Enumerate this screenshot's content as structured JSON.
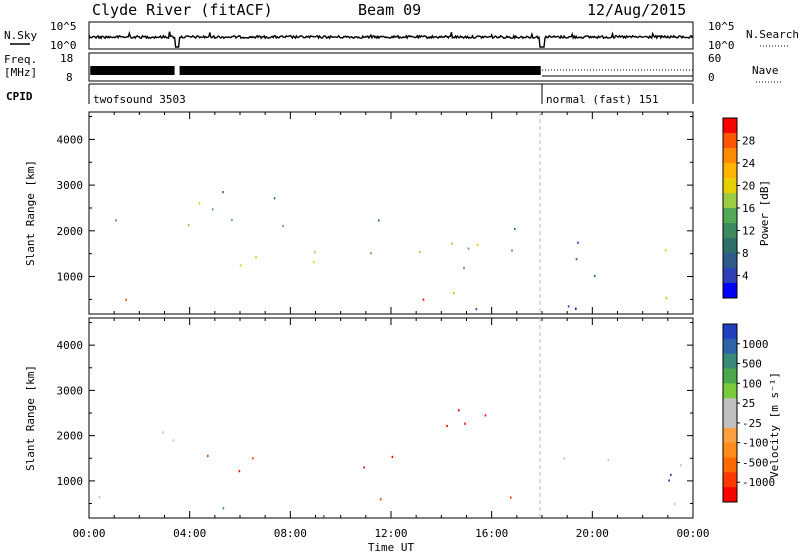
{
  "header": {
    "station": "Clyde River (fitACF)",
    "beam": "Beam 09",
    "date": "12/Aug/2015"
  },
  "summary": {
    "nsky_label": "N.Sky",
    "nsearch_label": "N.Search",
    "freq_label_1": "Freq.",
    "freq_label_2": "[MHz]",
    "nave_label": "Nave",
    "cpid_label": "CPID",
    "left_ticks": {
      "noise": [
        "10^5",
        "10^0"
      ],
      "freq": [
        "18",
        "8"
      ]
    },
    "right_ticks": {
      "noise": [
        "10^5",
        "10^0"
      ],
      "nave": [
        "60",
        "0"
      ]
    },
    "cpid_segments": [
      {
        "label": "twofsound 3503",
        "start_hour": 0,
        "end_hour": 18
      },
      {
        "label": "normal (fast) 151",
        "start_hour": 18,
        "end_hour": 24
      }
    ]
  },
  "chart_data": [
    {
      "type": "heatmap",
      "title": "",
      "quantity": "Power",
      "xlabel": "Time UT",
      "ylabel": "Slant Range [km]",
      "x_ticks": [
        "00:00",
        "04:00",
        "08:00",
        "12:00",
        "16:00",
        "20:00",
        "00:00"
      ],
      "x_range_hours": [
        0,
        24
      ],
      "y_ticks": [
        "1000",
        "2000",
        "3000",
        "4000"
      ],
      "y_tick_values": [
        1000,
        2000,
        3000,
        4000
      ],
      "ylim": [
        180,
        4600
      ],
      "colorbar": {
        "label": "Power [dB]",
        "tick_labels": [
          "28",
          "24",
          "20",
          "16",
          "12",
          "8",
          "4"
        ],
        "colors": [
          "#ff0000",
          "#ff5500",
          "#ff8c00",
          "#ffb400",
          "#e6d000",
          "#9ccc44",
          "#55a855",
          "#3d8a60",
          "#2f6f6a",
          "#2e5b8a",
          "#2f3fb6",
          "#0000ff"
        ]
      },
      "scatter_regions": [
        {
          "t_start": 0.4,
          "t_end": 2.0,
          "r_min": 300,
          "r_max": 950,
          "value": 26
        },
        {
          "t_start": 2.3,
          "t_end": 3.4,
          "r_min": 400,
          "r_max": 1000,
          "value": 22
        },
        {
          "t_start": 3.6,
          "t_end": 6.0,
          "r_min": 700,
          "r_max": 1500,
          "value": 18
        },
        {
          "t_start": 6.0,
          "t_end": 9.5,
          "r_min": 800,
          "r_max": 1500,
          "value": 20
        },
        {
          "t_start": 8.0,
          "t_end": 12.0,
          "r_min": 1300,
          "r_max": 2400,
          "value": 14
        },
        {
          "t_start": 11.5,
          "t_end": 17.8,
          "r_min": 350,
          "r_max": 750,
          "value": 24
        },
        {
          "t_start": 12.0,
          "t_end": 15.5,
          "r_min": 900,
          "r_max": 2600,
          "value": 16
        },
        {
          "t_start": 13.5,
          "t_end": 17.5,
          "r_min": 1200,
          "r_max": 2400,
          "value": 13
        },
        {
          "t_start": 18.0,
          "t_end": 21.5,
          "r_min": 900,
          "r_max": 2100,
          "value": 8
        },
        {
          "t_start": 21.5,
          "t_end": 23.0,
          "r_min": 250,
          "r_max": 900,
          "value": 27
        },
        {
          "t_start": 22.5,
          "t_end": 24.0,
          "r_min": 1400,
          "r_max": 2700,
          "value": 18
        },
        {
          "t_start": 1.0,
          "t_end": 8.0,
          "r_min": 1800,
          "r_max": 3300,
          "value": 15
        },
        {
          "t_start": 0.0,
          "t_end": 24.0,
          "r_min": 180,
          "r_max": 350,
          "value": 6
        }
      ]
    },
    {
      "type": "heatmap",
      "title": "",
      "quantity": "Velocity",
      "xlabel": "Time UT",
      "ylabel": "Slant Range [km]",
      "x_ticks": [
        "00:00",
        "04:00",
        "08:00",
        "12:00",
        "16:00",
        "20:00",
        "00:00"
      ],
      "x_range_hours": [
        0,
        24
      ],
      "y_ticks": [
        "1000",
        "2000",
        "3000",
        "4000"
      ],
      "y_tick_values": [
        1000,
        2000,
        3000,
        4000
      ],
      "ylim": [
        180,
        4600
      ],
      "colorbar": {
        "label": "Velocity [m s⁻¹]",
        "tick_labels": [
          "1000",
          "500",
          "100",
          "25",
          "-25",
          "-100",
          "-500",
          "-1000"
        ],
        "colors": [
          "#1f3fbf",
          "#2d62a8",
          "#3a8a78",
          "#4aa84a",
          "#7acb3a",
          "#c0c0c0",
          "#c0c0c0",
          "#ffa040",
          "#ff8c1a",
          "#ff6a00",
          "#ff3a00",
          "#ff0000"
        ]
      },
      "scatter_regions": [
        {
          "t_start": 0.0,
          "t_end": 2.0,
          "r_min": 300,
          "r_max": 900,
          "value": 0
        },
        {
          "t_start": 2.0,
          "t_end": 3.5,
          "r_min": 180,
          "r_max": 500,
          "value": 80
        },
        {
          "t_start": 4.0,
          "t_end": 12.0,
          "r_min": 900,
          "r_max": 1600,
          "value": -300
        },
        {
          "t_start": 11.5,
          "t_end": 18.0,
          "r_min": 450,
          "r_max": 900,
          "value": -150
        },
        {
          "t_start": 12.0,
          "t_end": 16.5,
          "r_min": 1100,
          "r_max": 2800,
          "value": -400
        },
        {
          "t_start": 3.5,
          "t_end": 12.0,
          "r_min": 180,
          "r_max": 500,
          "value": 60
        },
        {
          "t_start": 0.5,
          "t_end": 8.0,
          "r_min": 1800,
          "r_max": 2200,
          "value": 0
        },
        {
          "t_start": 18.5,
          "t_end": 21.5,
          "r_min": 900,
          "r_max": 2000,
          "value": 0
        },
        {
          "t_start": 21.0,
          "t_end": 23.8,
          "r_min": 300,
          "r_max": 900,
          "value": 0
        },
        {
          "t_start": 23.0,
          "t_end": 24.0,
          "r_min": 1200,
          "r_max": 2300,
          "value": 0
        },
        {
          "t_start": 22.5,
          "t_end": 24.0,
          "r_min": 1000,
          "r_max": 2400,
          "value": 600
        }
      ]
    }
  ]
}
